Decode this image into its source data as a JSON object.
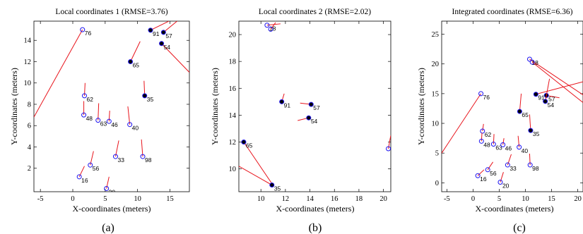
{
  "chart_data": [
    {
      "type": "scatter",
      "title": "Local coordinates 1 (RMSE=3.76)",
      "caption": "(a)",
      "xlabel": "X-coordinates (meters)",
      "ylabel": "Y-coordinates (meters)",
      "xlim": [
        -6,
        18
      ],
      "ylim": [
        -0.2,
        15.8
      ],
      "xticks": [
        -5,
        0,
        5,
        10,
        15
      ],
      "yticks": [
        2,
        4,
        6,
        8,
        10,
        12,
        14
      ],
      "points": [
        {
          "id": "76",
          "x": 1.5,
          "y": 15.0,
          "ex": -6.0,
          "ey": 6.8,
          "anchor": false
        },
        {
          "id": "91",
          "x": 12.0,
          "y": 14.95,
          "ex": 15.5,
          "ey": 16.0,
          "anchor": true
        },
        {
          "id": "57",
          "x": 14.0,
          "y": 14.75,
          "ex": 16.5,
          "ey": 16.0,
          "anchor": true
        },
        {
          "id": "54",
          "x": 13.7,
          "y": 13.7,
          "ex": 18.0,
          "ey": 11.0,
          "anchor": true
        },
        {
          "id": "65",
          "x": 8.9,
          "y": 12.0,
          "ex": 10.4,
          "ey": 13.9,
          "anchor": true
        },
        {
          "id": "35",
          "x": 11.1,
          "y": 8.8,
          "ex": 11.0,
          "ey": 10.2,
          "anchor": true
        },
        {
          "id": "62",
          "x": 1.8,
          "y": 8.8,
          "ex": 1.9,
          "ey": 10.0,
          "anchor": false
        },
        {
          "id": "48",
          "x": 1.7,
          "y": 7.0,
          "ex": 1.7,
          "ey": 8.3,
          "anchor": false
        },
        {
          "id": "63",
          "x": 3.9,
          "y": 6.5,
          "ex": 4.0,
          "ey": 8.1,
          "anchor": false
        },
        {
          "id": "46",
          "x": 5.6,
          "y": 6.4,
          "ex": 5.7,
          "ey": 7.4,
          "anchor": false
        },
        {
          "id": "40",
          "x": 8.8,
          "y": 6.1,
          "ex": 8.5,
          "ey": 7.8,
          "anchor": false
        },
        {
          "id": "33",
          "x": 6.6,
          "y": 3.1,
          "ex": 7.1,
          "ey": 4.6,
          "anchor": false
        },
        {
          "id": "98",
          "x": 10.8,
          "y": 3.1,
          "ex": 10.6,
          "ey": 4.7,
          "anchor": false
        },
        {
          "id": "56",
          "x": 2.7,
          "y": 2.3,
          "ex": 3.2,
          "ey": 3.6,
          "anchor": false
        },
        {
          "id": "16",
          "x": 1.0,
          "y": 1.2,
          "ex": 1.8,
          "ey": 2.2,
          "anchor": false
        },
        {
          "id": "20",
          "x": 5.2,
          "y": 0.1,
          "ex": 5.6,
          "ey": 1.2,
          "anchor": false
        }
      ]
    },
    {
      "type": "scatter",
      "title": "Local coordinates 2 (RMSE=2.02)",
      "caption": "(b)",
      "xlabel": "X-coordinates (meters)",
      "ylabel": "Y-coordinates (meters)",
      "xlim": [
        8.2,
        20.6
      ],
      "ylim": [
        8.3,
        21.0
      ],
      "xticks": [
        10,
        12,
        14,
        16,
        18,
        20
      ],
      "yticks": [
        10,
        12,
        14,
        16,
        18,
        20
      ],
      "points": [
        {
          "id": "18",
          "x": 10.5,
          "y": 20.7,
          "ex": 11.6,
          "ey": 20.8,
          "anchor": false
        },
        {
          "id": "18b",
          "x": 10.8,
          "y": 20.4,
          "ex": 11.2,
          "ey": 20.9,
          "anchor": false,
          "nolabel": true
        },
        {
          "id": "91",
          "x": 11.7,
          "y": 15.0,
          "ex": 11.9,
          "ey": 15.6,
          "anchor": true
        },
        {
          "id": "57",
          "x": 14.1,
          "y": 14.8,
          "ex": 13.2,
          "ey": 14.9,
          "anchor": true
        },
        {
          "id": "54",
          "x": 13.9,
          "y": 13.8,
          "ex": 13.0,
          "ey": 13.6,
          "anchor": true
        },
        {
          "id": "65",
          "x": 8.6,
          "y": 12.0,
          "ex": 10.9,
          "ey": 8.9,
          "anchor": true
        },
        {
          "id": "35",
          "x": 10.9,
          "y": 8.8,
          "ex": 8.2,
          "ey": 10.2,
          "anchor": true
        },
        {
          "id": "27",
          "x": 20.4,
          "y": 11.5,
          "ex": 20.6,
          "ey": 12.5,
          "anchor": false
        }
      ]
    },
    {
      "type": "scatter",
      "title": "Integrated coordinates (RMSE=6.36)",
      "caption": "(c)",
      "xlabel": "X-coordinates (meters)",
      "ylabel": "Y-coordinates (meters)",
      "xlim": [
        -6,
        21
      ],
      "ylim": [
        -1.5,
        27.2
      ],
      "xticks": [
        -5,
        0,
        5,
        10,
        15,
        20
      ],
      "yticks": [
        0,
        5,
        10,
        15,
        20,
        25
      ],
      "points": [
        {
          "id": "18",
          "x": 10.8,
          "y": 20.8,
          "ex": 21.0,
          "ey": 14.8,
          "anchor": false
        },
        {
          "id": "18b",
          "x": 11.3,
          "y": 20.3,
          "ex": 21.0,
          "ey": 13.5,
          "anchor": false,
          "nolabel": true
        },
        {
          "id": "76",
          "x": 1.5,
          "y": 15.0,
          "ex": -6.0,
          "ey": 5.0,
          "anchor": false
        },
        {
          "id": "91",
          "x": 12.0,
          "y": 14.9,
          "ex": 21.0,
          "ey": 17.0,
          "anchor": true
        },
        {
          "id": "57",
          "x": 14.0,
          "y": 14.7,
          "ex": 16.5,
          "ey": 14.3,
          "anchor": true
        },
        {
          "id": "54",
          "x": 13.8,
          "y": 13.7,
          "ex": 14.6,
          "ey": 17.5,
          "anchor": true
        },
        {
          "id": "65",
          "x": 8.9,
          "y": 12.0,
          "ex": 9.2,
          "ey": 15.0,
          "anchor": true
        },
        {
          "id": "35",
          "x": 11.0,
          "y": 8.8,
          "ex": 10.8,
          "ey": 11.5,
          "anchor": true
        },
        {
          "id": "62",
          "x": 1.8,
          "y": 8.7,
          "ex": 2.0,
          "ey": 9.9,
          "anchor": false
        },
        {
          "id": "48",
          "x": 1.6,
          "y": 7.0,
          "ex": 1.7,
          "ey": 8.4,
          "anchor": false
        },
        {
          "id": "63",
          "x": 3.9,
          "y": 6.5,
          "ex": 4.0,
          "ey": 8.2,
          "anchor": false
        },
        {
          "id": "46",
          "x": 5.7,
          "y": 6.4,
          "ex": 5.9,
          "ey": 7.5,
          "anchor": false
        },
        {
          "id": "40",
          "x": 8.8,
          "y": 6.0,
          "ex": 8.6,
          "ey": 7.9,
          "anchor": false
        },
        {
          "id": "33",
          "x": 6.6,
          "y": 3.0,
          "ex": 7.3,
          "ey": 4.8,
          "anchor": false
        },
        {
          "id": "98",
          "x": 10.9,
          "y": 3.0,
          "ex": 10.8,
          "ey": 4.9,
          "anchor": false
        },
        {
          "id": "56",
          "x": 2.8,
          "y": 2.2,
          "ex": 3.8,
          "ey": 3.5,
          "anchor": false
        },
        {
          "id": "16",
          "x": 0.9,
          "y": 1.2,
          "ex": 2.1,
          "ey": 2.2,
          "anchor": false
        },
        {
          "id": "20",
          "x": 5.2,
          "y": 0.1,
          "ex": 5.8,
          "ey": 1.8,
          "anchor": false
        }
      ]
    }
  ],
  "colors": {
    "estimate_line": "#e8141c",
    "marker_edge": "#1e14f0",
    "anchor_fill": "#000000"
  }
}
